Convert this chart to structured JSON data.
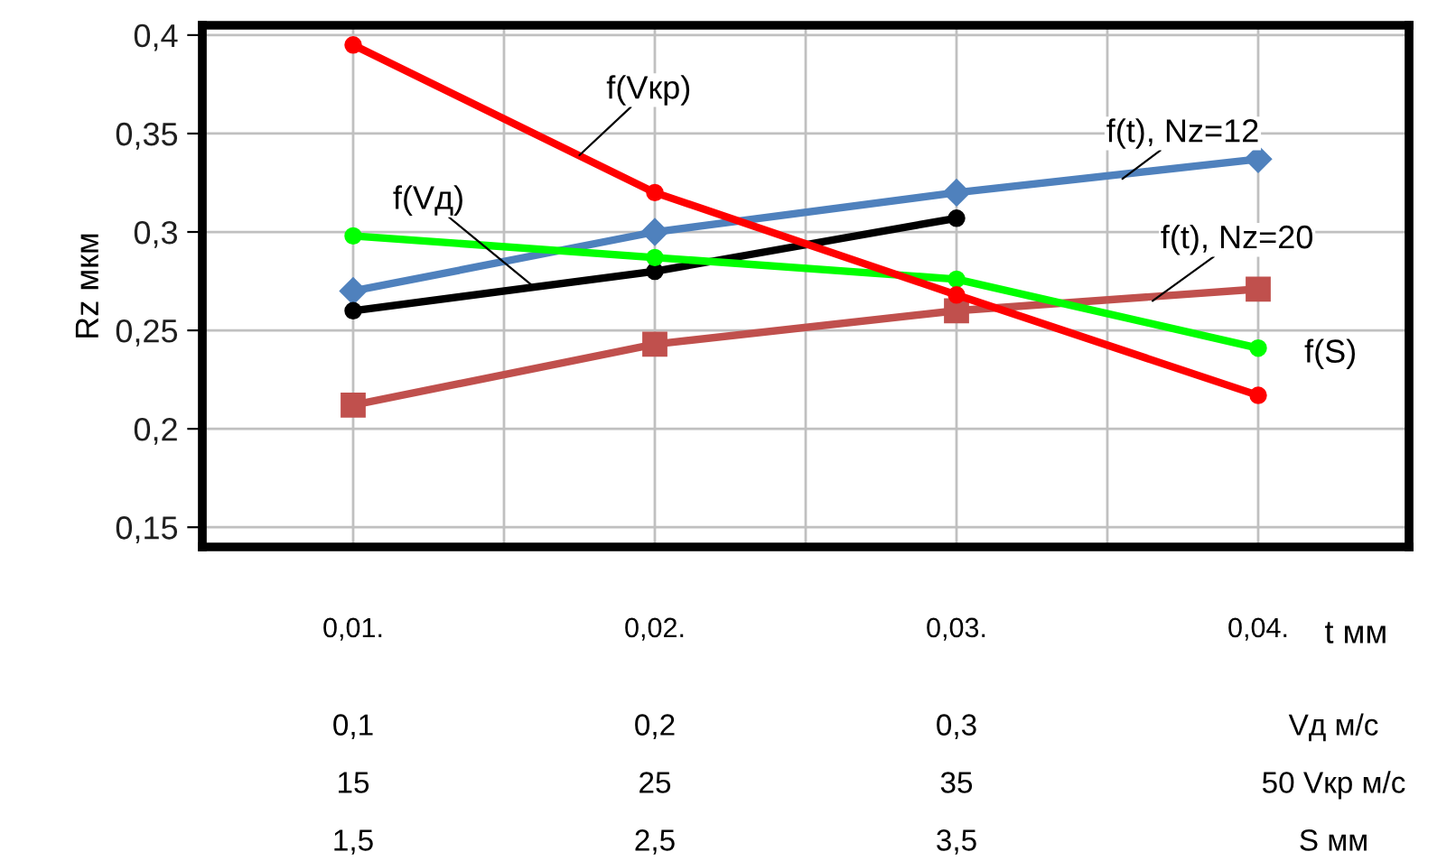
{
  "chart_data": {
    "type": "line",
    "ylabel": "Rz мкм",
    "xlabel": "t мм",
    "categories": [
      "0,01.",
      "0,02.",
      "0,03.",
      "0,04."
    ],
    "series": [
      {
        "name": "f(t), Nz=12",
        "color": "#4f81bd",
        "marker": "diamond",
        "values": [
          0.27,
          0.3,
          0.32,
          0.337
        ]
      },
      {
        "name": "f(t), Nz=20",
        "color": "#c0504d",
        "marker": "square",
        "values": [
          0.212,
          0.243,
          0.26,
          0.271
        ]
      },
      {
        "name": "f(Vд)",
        "color": "#000000",
        "marker": "circle",
        "values": [
          0.26,
          0.28,
          0.307,
          null
        ]
      },
      {
        "name": "f(S)",
        "color": "#00ff00",
        "marker": "circle",
        "values": [
          0.298,
          0.287,
          0.276,
          0.241
        ]
      },
      {
        "name": "f(Vкр)",
        "color": "#ff0000",
        "marker": "circle",
        "values": [
          0.395,
          0.32,
          0.268,
          0.217
        ]
      }
    ],
    "ylim": [
      0.14,
      0.405
    ],
    "yticks": [
      {
        "value": 0.15,
        "label": "0,15"
      },
      {
        "value": 0.2,
        "label": "0,2"
      },
      {
        "value": 0.25,
        "label": "0,25"
      },
      {
        "value": 0.3,
        "label": "0,3"
      },
      {
        "value": 0.35,
        "label": "0,35"
      },
      {
        "value": 0.4,
        "label": "0,4"
      }
    ],
    "grid": true,
    "legend": false,
    "annotations": [
      "0,1",
      "0,2",
      "0,3",
      "Vд м/с",
      "15",
      "25",
      "35",
      "50 Vкр м/с",
      "1,5",
      "2,5",
      "3,5",
      "S мм"
    ]
  }
}
